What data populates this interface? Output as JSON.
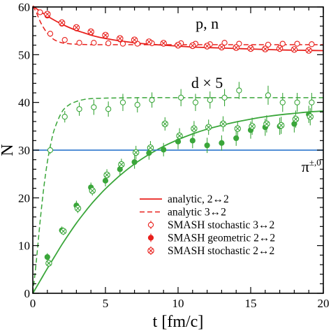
{
  "chart_data": {
    "type": "scatter",
    "xlabel": "t [fm/c]",
    "ylabel": "N",
    "xlim": [
      0,
      20
    ],
    "ylim": [
      0,
      60
    ],
    "x_ticks": [
      0,
      5,
      10,
      15,
      20
    ],
    "y_ticks": [
      0,
      10,
      20,
      30,
      40,
      50,
      60
    ],
    "x_tick_labels": [
      "0",
      "5",
      "10",
      "15",
      "20"
    ],
    "y_tick_labels": [
      "0",
      "10",
      "20",
      "30",
      "40",
      "50",
      "60"
    ],
    "grid": false,
    "legend_position": "bottom-right",
    "annotations": [
      {
        "text": "p, n",
        "x": 12.0,
        "y": 55.5
      },
      {
        "text": "d × 5",
        "x": 12.0,
        "y": 43.0
      },
      {
        "text": "π",
        "sup": "±,0",
        "x": 18.5,
        "y": 25.5
      }
    ],
    "colors": {
      "red": "#e8201c",
      "green": "#3aa63a",
      "blue": "#3a7fd0"
    },
    "series": [
      {
        "name": "analytic, 2↔2",
        "style": "solid",
        "color": "#e8201c",
        "x": [
          0,
          0.5,
          1,
          1.5,
          2,
          2.5,
          3,
          3.5,
          4,
          4.5,
          5,
          6,
          7,
          8,
          9,
          10,
          11,
          12,
          13,
          14,
          15,
          16,
          17,
          18,
          19,
          20
        ],
        "y": [
          60.2,
          59.1,
          58.1,
          57.2,
          56.4,
          55.7,
          55.1,
          54.6,
          54.1,
          53.7,
          53.4,
          52.9,
          52.5,
          52.2,
          52.0,
          51.8,
          51.6,
          51.5,
          51.4,
          51.3,
          51.2,
          51.1,
          51.0,
          50.95,
          50.9,
          50.85
        ]
      },
      {
        "name": "analytic 3↔2",
        "style": "dashed",
        "color": "#e8201c",
        "x": [
          0,
          0.25,
          0.5,
          0.75,
          1,
          1.25,
          1.5,
          2,
          2.5,
          3,
          4,
          5,
          6,
          8,
          10,
          12,
          14,
          16,
          18,
          20
        ],
        "y": [
          60.2,
          58.8,
          57.0,
          55.6,
          54.5,
          53.7,
          53.1,
          52.5,
          52.3,
          52.2,
          52.1,
          52.1,
          52.1,
          52.1,
          52.1,
          52.1,
          52.1,
          52.1,
          52.1,
          52.1
        ]
      },
      {
        "name": "analytic, 2↔2",
        "style": "solid",
        "color": "#3aa63a",
        "x": [
          0,
          0.5,
          1,
          1.5,
          2,
          2.5,
          3,
          3.5,
          4,
          4.5,
          5,
          6,
          7,
          8,
          9,
          10,
          11,
          12,
          13,
          14,
          15,
          16,
          17,
          18,
          19,
          20
        ],
        "y": [
          0,
          2.6,
          5.2,
          7.7,
          10.2,
          12.5,
          14.7,
          16.7,
          18.6,
          20.3,
          21.9,
          24.7,
          27.1,
          29.1,
          30.8,
          32.2,
          33.4,
          34.4,
          35.2,
          35.9,
          36.5,
          37.0,
          37.4,
          37.7,
          38.0,
          38.2
        ]
      },
      {
        "name": "analytic 3↔2",
        "style": "dashed",
        "color": "#3aa63a",
        "x": [
          0,
          0.25,
          0.5,
          0.75,
          1,
          1.25,
          1.5,
          2,
          2.5,
          3,
          3.5,
          4,
          5,
          6,
          8,
          10,
          12,
          14,
          16,
          18,
          20
        ],
        "y": [
          0,
          7.0,
          15.0,
          22.0,
          27.5,
          31.5,
          34.5,
          38.0,
          39.5,
          40.2,
          40.6,
          40.8,
          40.9,
          40.95,
          41.0,
          41.0,
          41.0,
          41.0,
          41.0,
          41.0,
          41.0
        ]
      },
      {
        "name": "π±,0",
        "style": "solid",
        "color": "#3a7fd0",
        "x": [
          0,
          20
        ],
        "y": [
          30,
          30
        ]
      },
      {
        "name": "SMASH stochastic 3↔2",
        "marker": "open-circle",
        "color": "#e8201c",
        "x": [
          0.5,
          1.2,
          2.2,
          3.2,
          4.2,
          5.2,
          6.2,
          7.2,
          8.2,
          10.2,
          11.2,
          12.2,
          13.2,
          14.2,
          16.2,
          17.2,
          18.2,
          19.2
        ],
        "y": [
          58.9,
          54.4,
          53.1,
          52.5,
          52.5,
          52.4,
          52.3,
          52.3,
          52.4,
          52.4,
          52.3,
          52.2,
          52.5,
          52.3,
          52.1,
          52.3,
          52.3,
          52.2
        ],
        "yerr": [
          0.4,
          0.4,
          0.4,
          0.5,
          0.5,
          0.5,
          0.5,
          0.5,
          0.5,
          0.5,
          0.5,
          0.5,
          0.6,
          0.6,
          0.6,
          0.6,
          0.6,
          0.6
        ]
      },
      {
        "name": "SMASH geometric 2↔2",
        "marker": "filled-circle",
        "color": "#e8201c",
        "x": [
          1,
          2,
          3,
          4,
          5,
          6,
          7,
          8,
          9,
          10,
          11,
          12,
          13,
          14,
          15,
          16,
          17,
          18,
          19
        ],
        "y": [
          58.2,
          56.5,
          55.5,
          54.6,
          54.0,
          53.2,
          52.9,
          52.6,
          52.3,
          51.9,
          51.8,
          51.7,
          51.5,
          51.6,
          51.4,
          51.3,
          51.2,
          51.1,
          51.0
        ],
        "yerr": [
          0.3,
          0.3,
          0.3,
          0.3,
          0.3,
          0.3,
          0.3,
          0.3,
          0.3,
          0.3,
          0.3,
          0.3,
          0.3,
          0.3,
          0.3,
          0.3,
          0.3,
          0.3,
          0.3
        ]
      },
      {
        "name": "SMASH stochastic 2↔2",
        "marker": "crossed-circle",
        "color": "#e8201c",
        "x": [
          1,
          2,
          3,
          4,
          5,
          6,
          7,
          8,
          9,
          10,
          11,
          12,
          13,
          14,
          15,
          16,
          17,
          18,
          19
        ],
        "y": [
          58.5,
          56.7,
          55.7,
          54.8,
          54.1,
          53.4,
          53.1,
          52.7,
          52.4,
          52.0,
          51.9,
          51.8,
          51.6,
          51.5,
          51.3,
          51.2,
          51.3,
          51.1,
          50.9
        ],
        "yerr": [
          0.3,
          0.3,
          0.3,
          0.3,
          0.3,
          0.3,
          0.3,
          0.3,
          0.3,
          0.3,
          0.3,
          0.3,
          0.3,
          0.3,
          0.3,
          0.3,
          0.3,
          0.3,
          0.3
        ]
      },
      {
        "name": "SMASH stochastic 3↔2",
        "marker": "open-circle",
        "color": "#3aa63a",
        "x": [
          1.2,
          2.2,
          3.2,
          4.2,
          5.2,
          6.2,
          7.2,
          8.2,
          10.2,
          11.2,
          12.2,
          13.2,
          14.2,
          16.2,
          17.2,
          18.2,
          19.2
        ],
        "y": [
          30.0,
          37.0,
          38.6,
          39.0,
          38.6,
          40.0,
          39.5,
          40.5,
          41.0,
          40.0,
          40.5,
          41.0,
          42.5,
          41.5,
          40.0,
          40.0,
          40.0
        ],
        "yerr": [
          0.8,
          1.2,
          1.4,
          1.6,
          1.6,
          1.8,
          1.6,
          1.6,
          1.8,
          1.8,
          1.8,
          1.8,
          1.8,
          2.0,
          2.0,
          2.0,
          2.0
        ]
      },
      {
        "name": "SMASH geometric 2↔2",
        "marker": "filled-circle",
        "color": "#3aa63a",
        "x": [
          1,
          2,
          3,
          4,
          5,
          6,
          7,
          8,
          9,
          10,
          11,
          12,
          13,
          14,
          15,
          16,
          17,
          18,
          19
        ],
        "y": [
          7.6,
          13.2,
          18.4,
          22.2,
          23.6,
          26.0,
          27.5,
          29.4,
          30.1,
          31.8,
          32.0,
          31.0,
          31.5,
          32.5,
          34.2,
          34.8,
          35.0,
          35.5,
          37.5
        ],
        "yerr": [
          0.8,
          0.8,
          1.0,
          1.0,
          1.2,
          1.2,
          1.4,
          1.4,
          1.4,
          1.6,
          1.6,
          1.6,
          1.6,
          1.6,
          1.8,
          1.8,
          1.8,
          1.8,
          1.8
        ]
      },
      {
        "name": "SMASH stochastic 2↔2",
        "marker": "crossed-circle",
        "color": "#3aa63a",
        "x": [
          1.1,
          2.1,
          3.1,
          4.1,
          5.1,
          6.1,
          7.1,
          8.1,
          9.1,
          10.1,
          11.1,
          12.1,
          13.1,
          14.1,
          15.1,
          16.1,
          17.1,
          18.1,
          19.1
        ],
        "y": [
          6.3,
          13.0,
          17.8,
          21.5,
          24.8,
          27.0,
          29.5,
          30.5,
          35.5,
          33.0,
          34.5,
          34.8,
          35.5,
          34.5,
          35.0,
          35.5,
          35.2,
          36.5,
          37.0
        ],
        "yerr": [
          0.8,
          0.8,
          1.0,
          1.0,
          1.2,
          1.2,
          1.4,
          1.4,
          1.4,
          1.6,
          1.6,
          1.6,
          1.6,
          1.6,
          1.8,
          1.8,
          1.8,
          1.8,
          1.8
        ]
      }
    ],
    "legend": [
      {
        "label": "analytic, 2↔2",
        "kind": "solid"
      },
      {
        "label": "analytic 3↔2",
        "kind": "dashed"
      },
      {
        "label": "SMASH stochastic 3↔2",
        "kind": "open-circle"
      },
      {
        "label": "SMASH geometric 2↔2",
        "kind": "filled-circle"
      },
      {
        "label": "SMASH stochastic 2↔2",
        "kind": "crossed-circle"
      }
    ]
  }
}
